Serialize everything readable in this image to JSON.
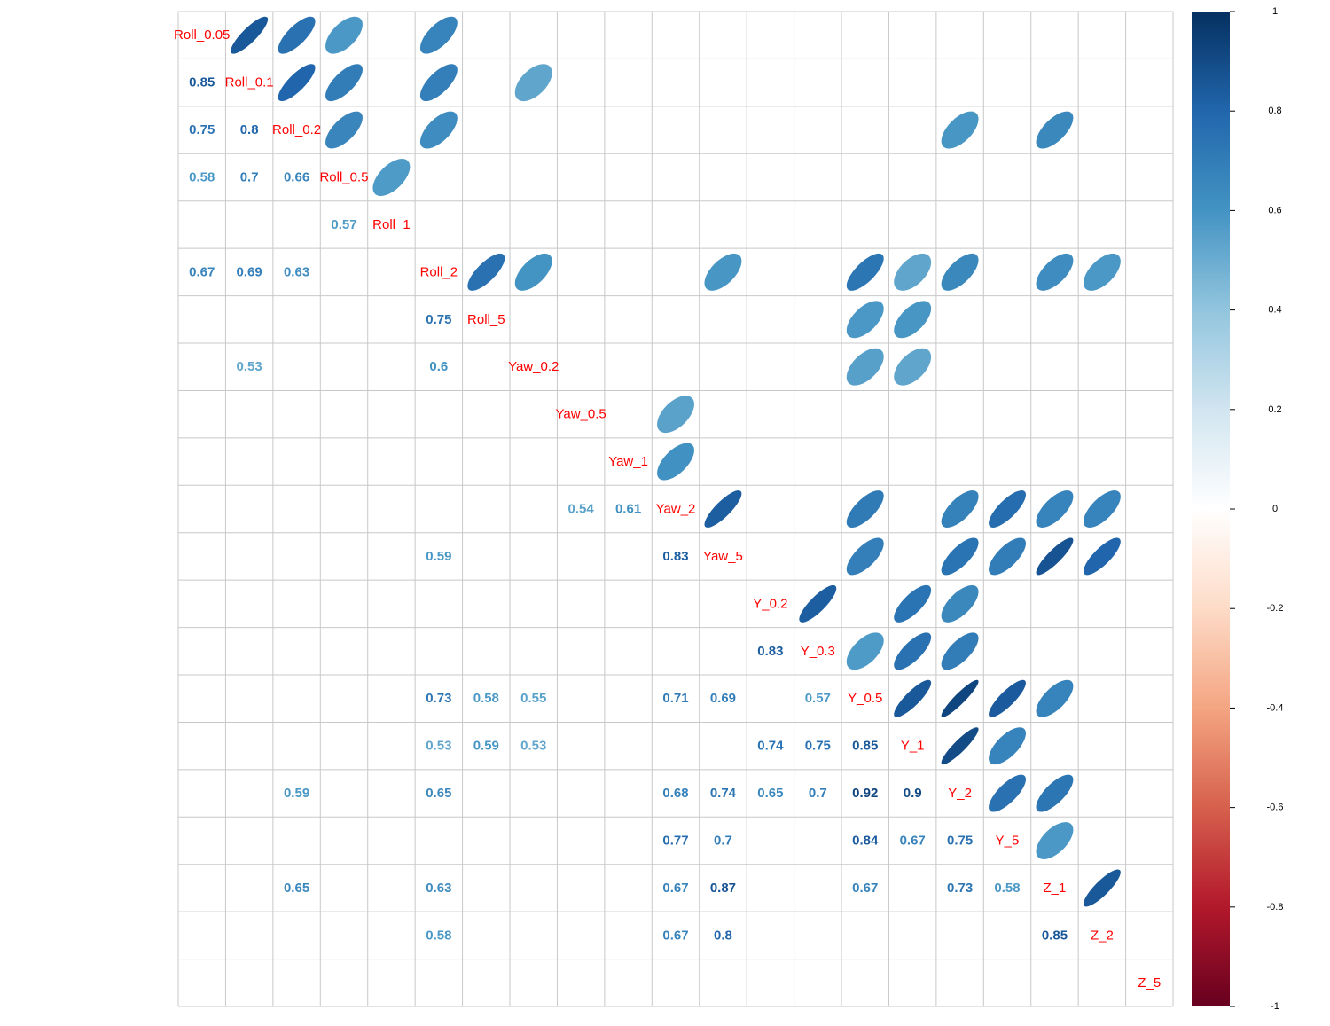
{
  "chart_data": {
    "type": "heatmap",
    "variables": [
      "Roll_0.05",
      "Roll_0.1",
      "Roll_0.2",
      "Roll_0.5",
      "Roll_1",
      "Roll_2",
      "Roll_5",
      "Yaw_0.2",
      "Yaw_0.5",
      "Yaw_1",
      "Yaw_2",
      "Yaw_5",
      "Y_0.2",
      "Y_0.3",
      "Y_0.5",
      "Y_1",
      "Y_2",
      "Y_5",
      "Z_1",
      "Z_2",
      "Z_5"
    ],
    "diagonal_labels": [
      "Roll_0.05",
      "Roll_0.1",
      "Roll_0.2",
      "Roll_0.5",
      "Roll_1",
      "Roll_2",
      "Roll_5",
      "Yaw_0.2",
      "Yaw_0.5",
      "Yaw_1",
      "Yaw_2",
      "Yaw_5",
      "Y_0.2",
      "Y_0.3",
      "Y_0.5",
      "Y_1",
      "Y_2",
      "Y_5",
      "Z_1",
      "Z_2",
      "Z_5"
    ],
    "lower_triangle": "number",
    "upper_triangle": "ellipse",
    "correlations": [
      {
        "row": "Roll_0.1",
        "col": "Roll_0.05",
        "value": 0.85,
        "label": "0.85"
      },
      {
        "row": "Roll_0.2",
        "col": "Roll_0.05",
        "value": 0.75,
        "label": "0.75"
      },
      {
        "row": "Roll_0.2",
        "col": "Roll_0.1",
        "value": 0.8,
        "label": "0.8"
      },
      {
        "row": "Roll_0.5",
        "col": "Roll_0.05",
        "value": 0.58,
        "label": "0.58"
      },
      {
        "row": "Roll_0.5",
        "col": "Roll_0.1",
        "value": 0.7,
        "label": "0.7"
      },
      {
        "row": "Roll_0.5",
        "col": "Roll_0.2",
        "value": 0.66,
        "label": "0.66"
      },
      {
        "row": "Roll_1",
        "col": "Roll_0.5",
        "value": 0.57,
        "label": "0.57"
      },
      {
        "row": "Roll_2",
        "col": "Roll_0.05",
        "value": 0.67,
        "label": "0.67"
      },
      {
        "row": "Roll_2",
        "col": "Roll_0.1",
        "value": 0.69,
        "label": "0.69"
      },
      {
        "row": "Roll_2",
        "col": "Roll_0.2",
        "value": 0.63,
        "label": "0.63"
      },
      {
        "row": "Roll_5",
        "col": "Roll_2",
        "value": 0.75,
        "label": "0.75"
      },
      {
        "row": "Yaw_0.2",
        "col": "Roll_0.1",
        "value": 0.53,
        "label": "0.53"
      },
      {
        "row": "Yaw_0.2",
        "col": "Roll_2",
        "value": 0.6,
        "label": "0.6"
      },
      {
        "row": "Yaw_2",
        "col": "Yaw_0.5",
        "value": 0.54,
        "label": "0.54"
      },
      {
        "row": "Yaw_2",
        "col": "Yaw_1",
        "value": 0.61,
        "label": "0.61"
      },
      {
        "row": "Yaw_5",
        "col": "Roll_2",
        "value": 0.59,
        "label": "0.59"
      },
      {
        "row": "Yaw_5",
        "col": "Yaw_2",
        "value": 0.83,
        "label": "0.83"
      },
      {
        "row": "Y_0.3",
        "col": "Y_0.2",
        "value": 0.83,
        "label": "0.83"
      },
      {
        "row": "Y_0.5",
        "col": "Roll_2",
        "value": 0.73,
        "label": "0.73"
      },
      {
        "row": "Y_0.5",
        "col": "Roll_5",
        "value": 0.58,
        "label": "0.58"
      },
      {
        "row": "Y_0.5",
        "col": "Yaw_0.2",
        "value": 0.55,
        "label": "0.55"
      },
      {
        "row": "Y_0.5",
        "col": "Yaw_2",
        "value": 0.71,
        "label": "0.71"
      },
      {
        "row": "Y_0.5",
        "col": "Yaw_5",
        "value": 0.69,
        "label": "0.69"
      },
      {
        "row": "Y_0.5",
        "col": "Y_0.3",
        "value": 0.57,
        "label": "0.57"
      },
      {
        "row": "Y_1",
        "col": "Roll_2",
        "value": 0.53,
        "label": "0.53"
      },
      {
        "row": "Y_1",
        "col": "Roll_5",
        "value": 0.59,
        "label": "0.59"
      },
      {
        "row": "Y_1",
        "col": "Yaw_0.2",
        "value": 0.53,
        "label": "0.53"
      },
      {
        "row": "Y_1",
        "col": "Y_0.2",
        "value": 0.74,
        "label": "0.74"
      },
      {
        "row": "Y_1",
        "col": "Y_0.3",
        "value": 0.75,
        "label": "0.75"
      },
      {
        "row": "Y_1",
        "col": "Y_0.5",
        "value": 0.85,
        "label": "0.85"
      },
      {
        "row": "Y_2",
        "col": "Roll_0.2",
        "value": 0.59,
        "label": "0.59"
      },
      {
        "row": "Y_2",
        "col": "Roll_2",
        "value": 0.65,
        "label": "0.65"
      },
      {
        "row": "Y_2",
        "col": "Yaw_2",
        "value": 0.68,
        "label": "0.68"
      },
      {
        "row": "Y_2",
        "col": "Yaw_5",
        "value": 0.74,
        "label": "0.74"
      },
      {
        "row": "Y_2",
        "col": "Y_0.2",
        "value": 0.65,
        "label": "0.65"
      },
      {
        "row": "Y_2",
        "col": "Y_0.3",
        "value": 0.7,
        "label": "0.7"
      },
      {
        "row": "Y_2",
        "col": "Y_0.5",
        "value": 0.92,
        "label": "0.92"
      },
      {
        "row": "Y_2",
        "col": "Y_1",
        "value": 0.9,
        "label": "0.9"
      },
      {
        "row": "Y_5",
        "col": "Yaw_2",
        "value": 0.77,
        "label": "0.77"
      },
      {
        "row": "Y_5",
        "col": "Yaw_5",
        "value": 0.7,
        "label": "0.7"
      },
      {
        "row": "Y_5",
        "col": "Y_0.5",
        "value": 0.84,
        "label": "0.84"
      },
      {
        "row": "Y_5",
        "col": "Y_1",
        "value": 0.67,
        "label": "0.67"
      },
      {
        "row": "Y_5",
        "col": "Y_2",
        "value": 0.75,
        "label": "0.75"
      },
      {
        "row": "Z_1",
        "col": "Roll_0.2",
        "value": 0.65,
        "label": "0.65"
      },
      {
        "row": "Z_1",
        "col": "Roll_2",
        "value": 0.63,
        "label": "0.63"
      },
      {
        "row": "Z_1",
        "col": "Yaw_2",
        "value": 0.67,
        "label": "0.67"
      },
      {
        "row": "Z_1",
        "col": "Yaw_5",
        "value": 0.87,
        "label": "0.87"
      },
      {
        "row": "Z_1",
        "col": "Y_0.5",
        "value": 0.67,
        "label": "0.67"
      },
      {
        "row": "Z_1",
        "col": "Y_2",
        "value": 0.73,
        "label": "0.73"
      },
      {
        "row": "Z_1",
        "col": "Y_5",
        "value": 0.58,
        "label": "0.58"
      },
      {
        "row": "Z_2",
        "col": "Roll_2",
        "value": 0.58,
        "label": "0.58"
      },
      {
        "row": "Z_2",
        "col": "Yaw_2",
        "value": 0.67,
        "label": "0.67"
      },
      {
        "row": "Z_2",
        "col": "Yaw_5",
        "value": 0.8,
        "label": "0.8"
      },
      {
        "row": "Z_2",
        "col": "Z_1",
        "value": 0.85,
        "label": "0.85"
      }
    ],
    "colorbar": {
      "range": [
        -1,
        1
      ],
      "ticks": [
        1,
        0.8,
        0.6,
        0.4,
        0.2,
        0,
        -0.2,
        -0.4,
        -0.6,
        -0.8,
        -1
      ],
      "tick_labels": [
        "1",
        "0.8",
        "0.6",
        "0.4",
        "0.2",
        "0",
        "-0.2",
        "-0.4",
        "-0.6",
        "-0.8",
        "-1"
      ],
      "palette": [
        "#67001F",
        "#B2182B",
        "#D6604D",
        "#F4A582",
        "#FDDBC7",
        "#FFFFFF",
        "#D1E5F0",
        "#92C5DE",
        "#4393C3",
        "#2166AC",
        "#053061"
      ]
    },
    "diag_label_color": "#FF0000",
    "grid_color": "#C8C8C8",
    "legend": "right"
  }
}
